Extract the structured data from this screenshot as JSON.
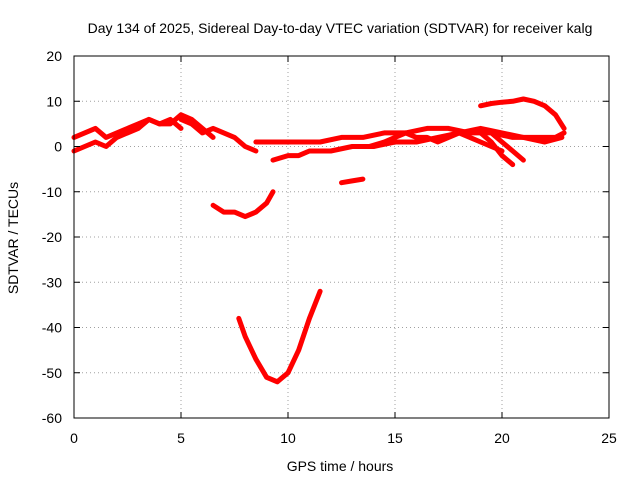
{
  "chart_data": {
    "type": "line",
    "title": "Day 134 of 2025, Sidereal Day-to-day VTEC variation (SDTVAR) for receiver kalg",
    "xlabel": "GPS time / hours",
    "ylabel": "SDTVAR / TECUs",
    "xlim": [
      0,
      25
    ],
    "ylim": [
      -60,
      20
    ],
    "xticks": [
      0,
      5,
      10,
      15,
      20,
      25
    ],
    "yticks": [
      -60,
      -50,
      -40,
      -30,
      -20,
      -10,
      0,
      10,
      20
    ],
    "grid": true,
    "series_color": "#ff0000",
    "series": [
      {
        "name": "arc-1",
        "x": [
          0.0,
          0.5,
          1.0,
          1.5,
          2.0,
          2.5,
          3.0,
          3.5,
          4.0,
          4.5,
          5.0,
          5.5,
          6.0,
          6.5
        ],
        "y": [
          -1,
          0,
          1,
          0,
          2,
          3,
          4,
          6,
          5,
          5,
          7,
          6,
          4,
          2
        ]
      },
      {
        "name": "arc-2",
        "x": [
          0.0,
          0.5,
          1.0,
          1.5,
          2.0,
          2.5,
          3.0,
          3.5,
          4.0,
          4.5,
          5.0
        ],
        "y": [
          2,
          3,
          4,
          2,
          3,
          4,
          5,
          6,
          5,
          6,
          4
        ]
      },
      {
        "name": "arc-3",
        "x": [
          5.0,
          5.5,
          6.0,
          6.5,
          7.0,
          7.5,
          8.0,
          8.5
        ],
        "y": [
          6,
          5,
          3,
          4,
          3,
          2,
          0,
          -1
        ]
      },
      {
        "name": "arc-4",
        "x": [
          8.5,
          9.5,
          10.5,
          11.5,
          12.5,
          13.5,
          14.5,
          15.5,
          16.5,
          17.5,
          18.5,
          19.5,
          20.5,
          21.5,
          22.5,
          22.9
        ],
        "y": [
          1,
          1,
          1,
          1,
          2,
          2,
          3,
          3,
          4,
          4,
          3,
          3,
          2,
          2,
          2,
          3
        ]
      },
      {
        "name": "arc-5",
        "x": [
          9.3,
          10.0,
          10.5,
          11.0,
          12.0,
          13.0,
          14.0,
          15.0,
          16.0,
          17.0,
          18.0,
          19.0,
          20.0,
          21.0,
          22.0,
          22.8
        ],
        "y": [
          -3,
          -2,
          -2,
          -1,
          -1,
          0,
          0,
          1,
          1,
          2,
          3,
          4,
          3,
          2,
          1,
          2
        ]
      },
      {
        "name": "arc-6",
        "x": [
          13.8,
          14.5,
          15.0,
          15.5,
          16.0,
          16.5,
          17.0,
          17.5,
          18.0,
          18.5,
          19.0,
          19.5,
          20.0
        ],
        "y": [
          0,
          1,
          2,
          3,
          2,
          2,
          1,
          2,
          3,
          2,
          1,
          0,
          -1
        ]
      },
      {
        "name": "arc-7",
        "x": [
          19.0,
          19.5,
          20.0,
          20.5
        ],
        "y": [
          3,
          1,
          -2,
          -4
        ]
      },
      {
        "name": "arc-8",
        "x": [
          19.5,
          20.0,
          20.5,
          21.0
        ],
        "y": [
          3,
          1,
          -1,
          -3
        ]
      },
      {
        "name": "arc-9",
        "x": [
          19.0,
          19.5,
          20.0,
          20.5,
          21.0,
          21.5,
          22.0,
          22.5,
          22.9
        ],
        "y": [
          9,
          9.5,
          9.8,
          10,
          10.5,
          10,
          9,
          7,
          4
        ]
      },
      {
        "name": "arc-10",
        "x": [
          12.5,
          13.0,
          13.5
        ],
        "y": [
          -8,
          -7.6,
          -7.2
        ]
      },
      {
        "name": "arc-11",
        "x": [
          6.5,
          7.0,
          7.5,
          8.0,
          8.5,
          9.0,
          9.3
        ],
        "y": [
          -13,
          -14.5,
          -14.5,
          -15.5,
          -14.5,
          -12.5,
          -10
        ]
      },
      {
        "name": "arc-12",
        "x": [
          7.7,
          8.0,
          8.5,
          9.0,
          9.5,
          10.0,
          10.5,
          11.0,
          11.5
        ],
        "y": [
          -38,
          -42,
          -47,
          -51,
          -52,
          -50,
          -45,
          -38,
          -32
        ]
      }
    ]
  }
}
